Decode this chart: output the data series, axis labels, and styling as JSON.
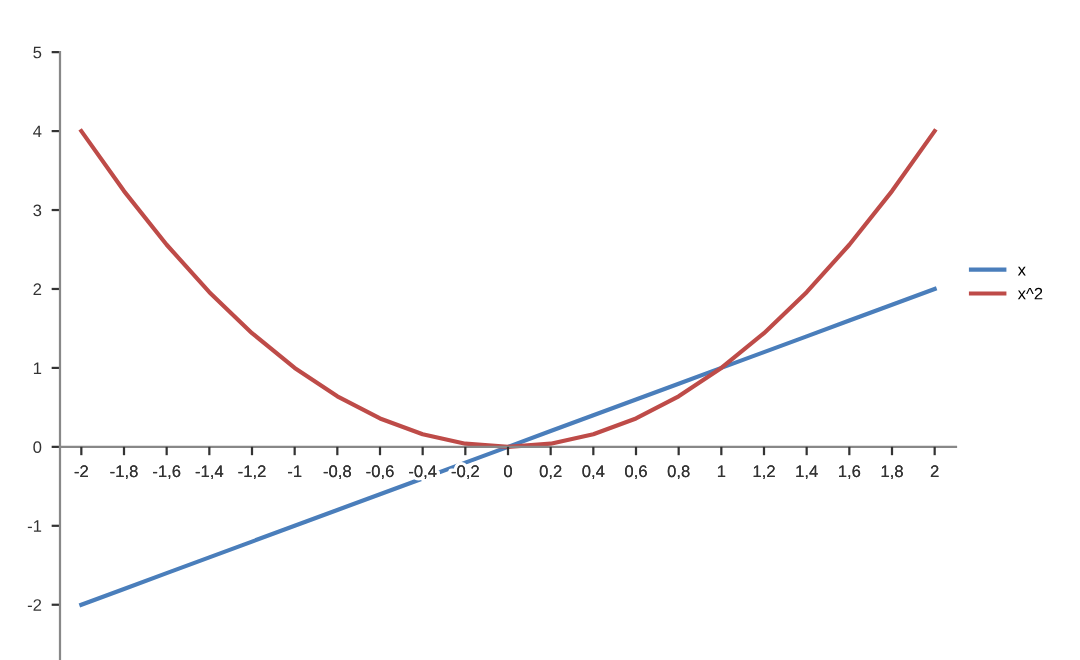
{
  "chart_data": {
    "type": "line",
    "x": [
      -2,
      -1.8,
      -1.6,
      -1.4,
      -1.2,
      -1,
      -0.8,
      -0.6,
      -0.4,
      -0.2,
      0,
      0.2,
      0.4,
      0.6,
      0.8,
      1,
      1.2,
      1.4,
      1.6,
      1.8,
      2
    ],
    "series": [
      {
        "name": "x",
        "color": "#4a7ebb",
        "values": [
          -2,
          -1.8,
          -1.6,
          -1.4,
          -1.2,
          -1,
          -0.8,
          -0.6,
          -0.4,
          -0.2,
          0,
          0.2,
          0.4,
          0.6,
          0.8,
          1,
          1.2,
          1.4,
          1.6,
          1.8,
          2
        ]
      },
      {
        "name": "x^2",
        "color": "#be4b48",
        "values": [
          4,
          3.24,
          2.56,
          1.96,
          1.44,
          1,
          0.64,
          0.36,
          0.16,
          0.04,
          0,
          0.04,
          0.16,
          0.36,
          0.64,
          1,
          1.44,
          1.96,
          2.56,
          3.24,
          4
        ]
      }
    ],
    "xlim": [
      -2.1,
      2.1
    ],
    "xticks": [
      -2,
      {
        "value": -1.8,
        "label": "-1,8"
      },
      {
        "value": -1.6,
        "label": "-1,6"
      },
      {
        "value": -1.4,
        "label": "-1,4"
      },
      {
        "value": -1.2,
        "label": "-1,2"
      },
      -1,
      {
        "value": -0.8,
        "label": "-0,8"
      },
      {
        "value": -0.6,
        "label": "-0,6"
      },
      {
        "value": -0.4,
        "label": "-0,4"
      },
      {
        "value": -0.2,
        "label": "-0,2"
      },
      0,
      {
        "value": 0.2,
        "label": "0,2"
      },
      {
        "value": 0.4,
        "label": "0,4"
      },
      {
        "value": 0.6,
        "label": "0,6"
      },
      {
        "value": 0.8,
        "label": "0,8"
      },
      1,
      {
        "value": 1.2,
        "label": "1,2"
      },
      {
        "value": 1.4,
        "label": "1,4"
      },
      {
        "value": 1.6,
        "label": "1,6"
      },
      {
        "value": 1.8,
        "label": "1,8"
      },
      2
    ],
    "ylim": [
      -2.7,
      5
    ],
    "yticks": [
      -2,
      -1,
      0,
      1,
      2,
      3,
      4,
      5
    ],
    "grid": false,
    "legend": "right",
    "marker": "none",
    "line_style": "solid"
  }
}
